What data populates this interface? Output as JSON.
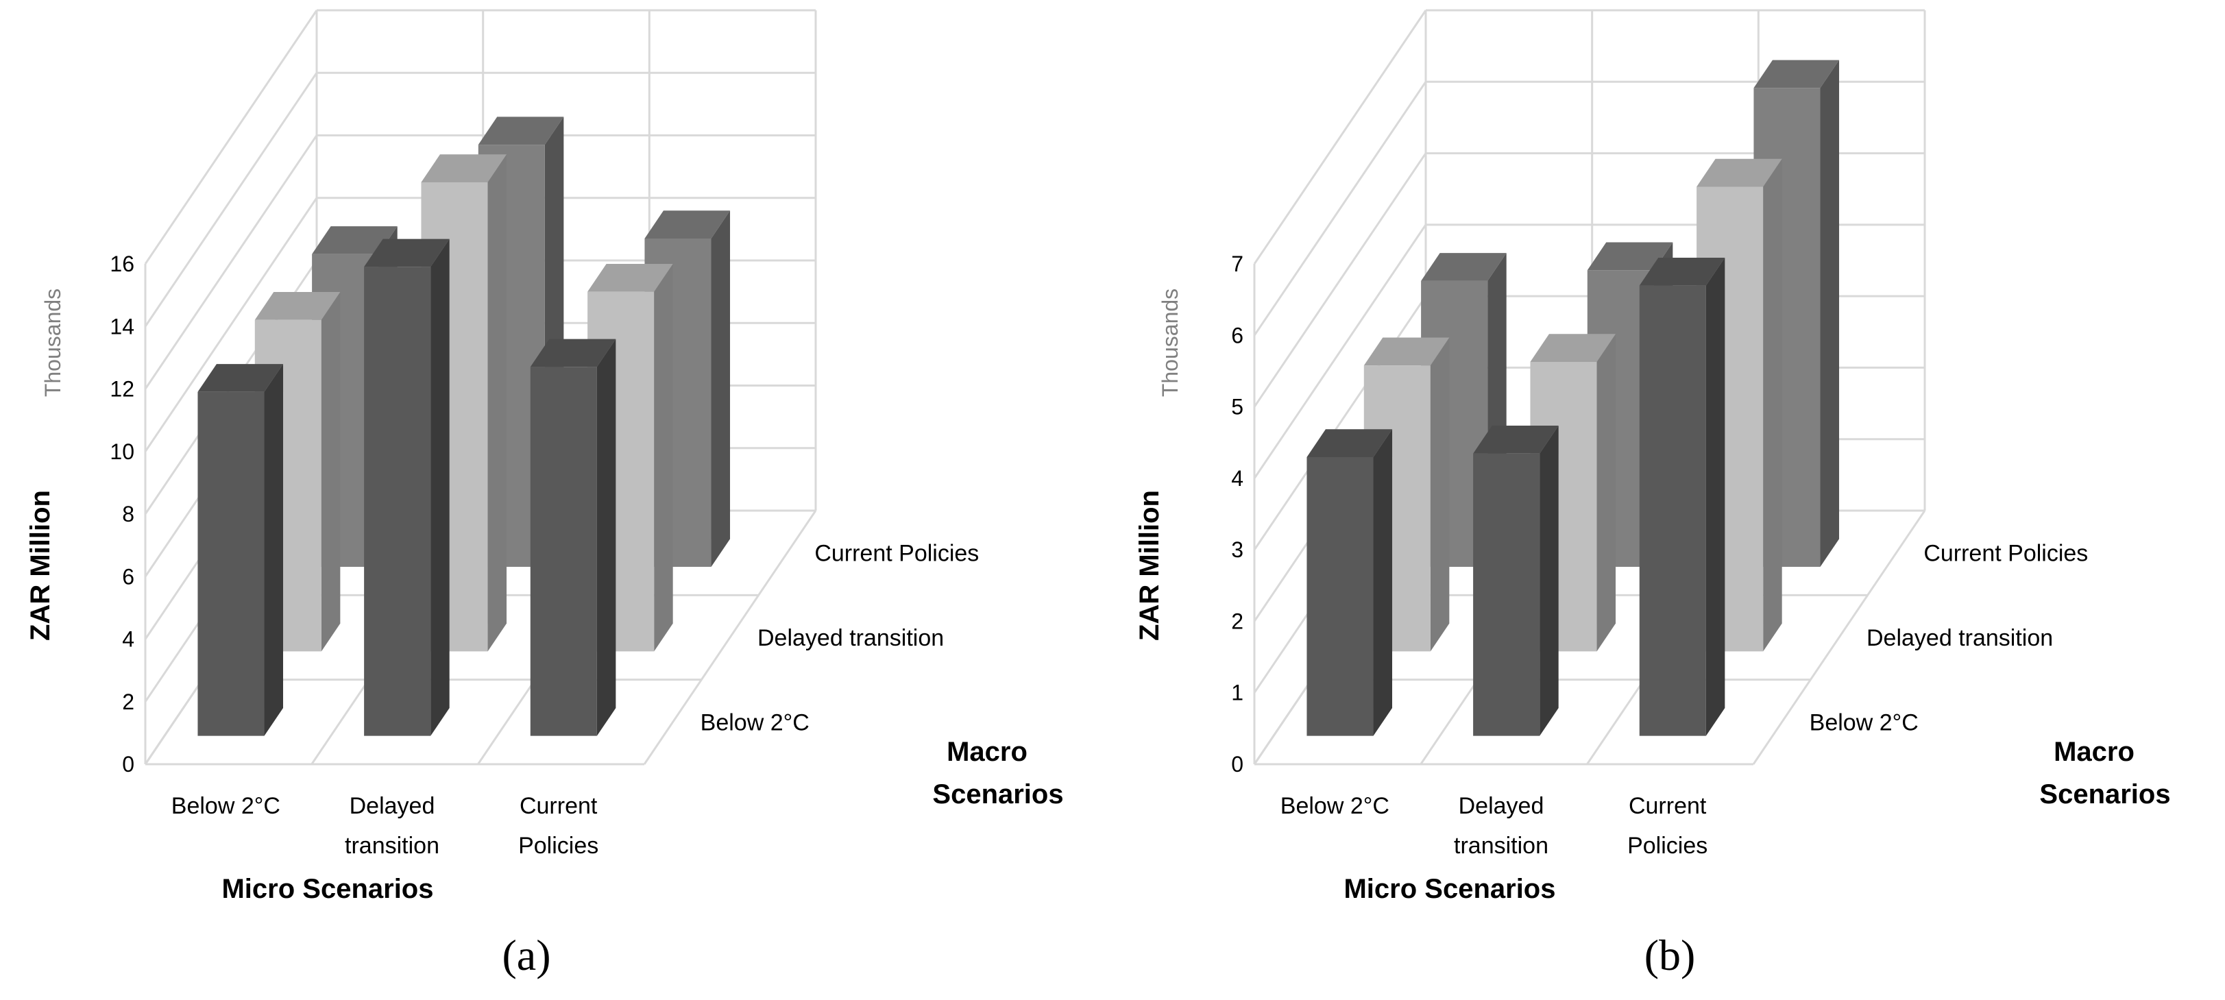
{
  "chart_data": [
    {
      "type": "bar",
      "subtype": "3d-column",
      "panel_label": "(a)",
      "ylabel": "ZAR Million",
      "units_label": "Thousands",
      "xlabel": "Micro Scenarios",
      "zlabel": "Macro Scenarios",
      "ylim": [
        0,
        16
      ],
      "yticks": [
        "0",
        "2",
        "4",
        "6",
        "8",
        "10",
        "12",
        "14",
        "16"
      ],
      "categories": [
        "Below 2°C",
        "Delayed transition",
        "Current Policies"
      ],
      "category_labels": [
        [
          "Below 2°C"
        ],
        [
          "Delayed",
          "transition"
        ],
        [
          "Current",
          "Policies"
        ]
      ],
      "series": [
        {
          "name": "Below 2°C",
          "values": [
            11.0,
            15.0,
            11.8
          ],
          "color": "#595959"
        },
        {
          "name": "Delayed transition",
          "values": [
            10.6,
            15.0,
            11.5
          ],
          "color": "#bfbfbf"
        },
        {
          "name": "Current Policies",
          "values": [
            10.0,
            13.5,
            10.5
          ],
          "color": "#808080"
        }
      ],
      "legend_position": "right"
    },
    {
      "type": "bar",
      "subtype": "3d-column",
      "panel_label": "(b)",
      "ylabel": "ZAR Million",
      "units_label": "Thousands",
      "xlabel": "Micro Scenarios",
      "zlabel": "Macro Scenarios",
      "ylim": [
        0,
        7
      ],
      "yticks": [
        "0",
        "1",
        "2",
        "3",
        "4",
        "5",
        "6",
        "7"
      ],
      "categories": [
        "Below 2°C",
        "Delayed transition",
        "Current Policies"
      ],
      "category_labels": [
        [
          "Below 2°C"
        ],
        [
          "Delayed",
          "transition"
        ],
        [
          "Current",
          "Policies"
        ]
      ],
      "series": [
        {
          "name": "Below 2°C",
          "values": [
            3.9,
            3.95,
            6.3
          ],
          "color": "#595959"
        },
        {
          "name": "Delayed transition",
          "values": [
            4.0,
            4.05,
            6.5
          ],
          "color": "#bfbfbf"
        },
        {
          "name": "Current Policies",
          "values": [
            4.0,
            4.15,
            6.7
          ],
          "color": "#808080"
        }
      ],
      "legend_position": "right"
    }
  ]
}
